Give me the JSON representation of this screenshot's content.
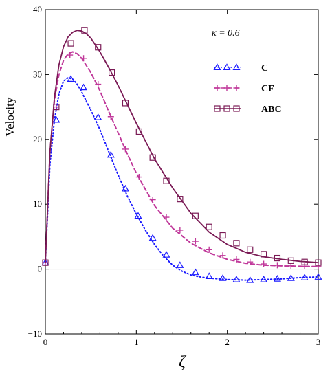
{
  "chart_data": {
    "type": "line",
    "xlabel": "ζ",
    "ylabel": "Velocity",
    "xlim": [
      0,
      3
    ],
    "ylim": [
      -10,
      40
    ],
    "xticks": [
      "0",
      "1",
      "2",
      "3"
    ],
    "yticks": [
      "−10",
      "0",
      "10",
      "20",
      "30",
      "40"
    ],
    "annotation": "κ = 0.6",
    "legend_position": "top-right",
    "series": [
      {
        "name": "C",
        "color": "#1a1aff",
        "line_style": "dotted",
        "marker": "triangle",
        "x": [
          0.0,
          0.05,
          0.1,
          0.15,
          0.2,
          0.25,
          0.3,
          0.35,
          0.4,
          0.5,
          0.6,
          0.7,
          0.8,
          0.9,
          1.0,
          1.1,
          1.2,
          1.3,
          1.4,
          1.5,
          1.6,
          1.7,
          1.8,
          1.9,
          2.0,
          2.2,
          2.4,
          2.6,
          2.8,
          3.0
        ],
        "y": [
          1.0,
          16.0,
          23.0,
          27.0,
          29.0,
          29.5,
          29.3,
          28.5,
          27.3,
          24.5,
          21.5,
          18.0,
          14.5,
          11.3,
          8.5,
          6.0,
          3.8,
          2.0,
          0.6,
          -0.3,
          -0.9,
          -1.2,
          -1.4,
          -1.5,
          -1.6,
          -1.7,
          -1.6,
          -1.5,
          -1.3,
          -1.2
        ],
        "marker_x": [
          0.0,
          0.12,
          0.28,
          0.42,
          0.58,
          0.72,
          0.88,
          1.02,
          1.18,
          1.33,
          1.48,
          1.65,
          1.8,
          1.95,
          2.1,
          2.25,
          2.4,
          2.55,
          2.7,
          2.85,
          3.0
        ],
        "marker_y": [
          1.0,
          23.0,
          29.3,
          28.0,
          23.4,
          17.6,
          12.4,
          8.2,
          4.8,
          2.2,
          0.6,
          -0.5,
          -1.1,
          -1.4,
          -1.6,
          -1.7,
          -1.6,
          -1.5,
          -1.4,
          -1.3,
          -1.2
        ]
      },
      {
        "name": "CF",
        "color": "#c0389a",
        "line_style": "dashed",
        "marker": "plus",
        "x": [
          0.0,
          0.05,
          0.1,
          0.15,
          0.2,
          0.25,
          0.3,
          0.35,
          0.4,
          0.5,
          0.6,
          0.7,
          0.8,
          0.9,
          1.0,
          1.2,
          1.4,
          1.6,
          1.8,
          2.0,
          2.2,
          2.4,
          2.6,
          2.8,
          3.0
        ],
        "y": [
          1.0,
          18.0,
          26.0,
          30.0,
          32.2,
          33.2,
          33.5,
          33.2,
          32.5,
          30.3,
          27.5,
          24.2,
          21.0,
          17.8,
          14.8,
          9.8,
          6.3,
          4.0,
          2.5,
          1.5,
          0.9,
          0.6,
          0.5,
          0.45,
          0.4
        ],
        "marker_x": [
          0.0,
          0.12,
          0.27,
          0.42,
          0.58,
          0.72,
          0.88,
          1.03,
          1.18,
          1.33,
          1.48,
          1.65,
          1.8,
          1.95,
          2.1,
          2.25,
          2.4,
          2.55,
          2.7,
          2.85,
          3.0
        ],
        "marker_y": [
          1.0,
          25.0,
          33.0,
          32.5,
          28.5,
          23.5,
          18.5,
          14.2,
          10.7,
          8.0,
          6.0,
          4.3,
          3.0,
          2.1,
          1.5,
          1.1,
          0.8,
          0.6,
          0.5,
          0.45,
          0.4
        ]
      },
      {
        "name": "ABC",
        "color": "#7a1a55",
        "line_style": "solid",
        "marker": "square",
        "x": [
          0.0,
          0.05,
          0.1,
          0.15,
          0.2,
          0.25,
          0.3,
          0.35,
          0.4,
          0.45,
          0.5,
          0.6,
          0.7,
          0.8,
          0.9,
          1.0,
          1.2,
          1.4,
          1.6,
          1.8,
          2.0,
          2.2,
          2.4,
          2.6,
          2.8,
          3.0
        ],
        "y": [
          1.0,
          18.0,
          26.5,
          31.5,
          34.3,
          35.8,
          36.5,
          36.8,
          36.7,
          36.3,
          35.6,
          33.5,
          31.0,
          28.3,
          25.4,
          22.5,
          17.0,
          12.5,
          8.6,
          5.7,
          3.8,
          2.6,
          1.9,
          1.5,
          1.2,
          1.0
        ],
        "marker_x": [
          0.0,
          0.12,
          0.28,
          0.43,
          0.58,
          0.73,
          0.88,
          1.03,
          1.18,
          1.33,
          1.48,
          1.65,
          1.8,
          1.95,
          2.1,
          2.25,
          2.4,
          2.55,
          2.7,
          2.85,
          3.0
        ],
        "marker_y": [
          1.0,
          25.0,
          34.8,
          36.8,
          34.2,
          30.3,
          25.6,
          21.2,
          17.2,
          13.6,
          10.8,
          8.2,
          6.5,
          5.2,
          4.0,
          3.0,
          2.3,
          1.7,
          1.3,
          1.1,
          1.0
        ]
      }
    ]
  }
}
